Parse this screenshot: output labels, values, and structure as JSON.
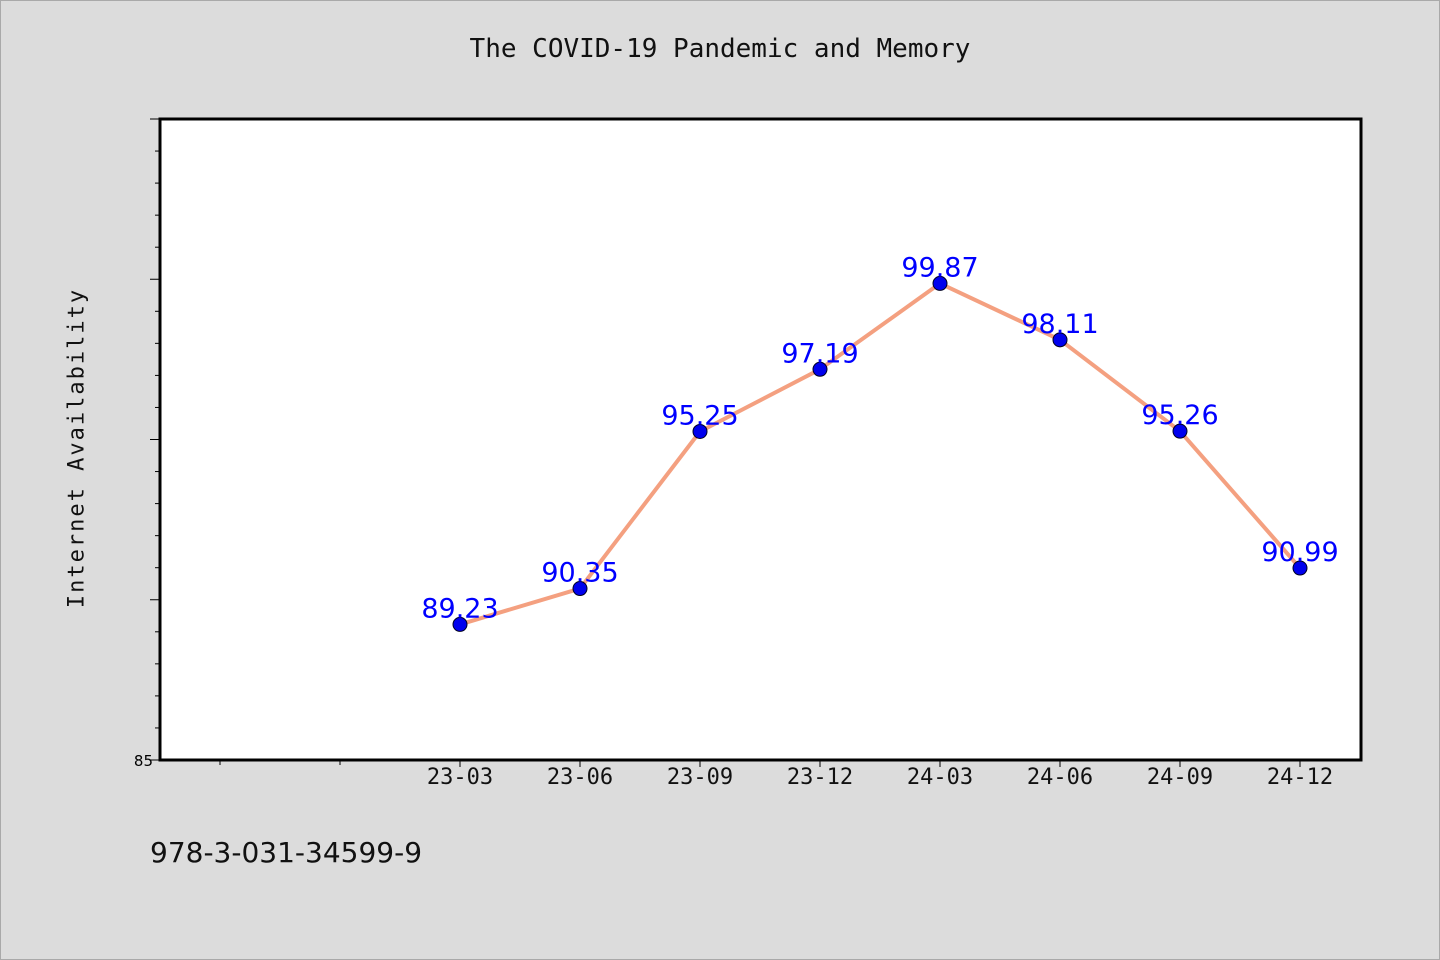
{
  "title": "The COVID-19 Pandemic and Memory",
  "footer_text": "978-3-031-34599-9",
  "colors": {
    "background": "#dcdcdc",
    "plot_background": "#ffffff",
    "line": "#f4a080",
    "marker": "#0000ee",
    "data_label": "#0000ff"
  },
  "chart_data": {
    "type": "line",
    "title": "The COVID-19 Pandemic and Memory",
    "xlabel": "",
    "ylabel": "Internet Availability",
    "categories": [
      "23-03",
      "23-06",
      "23-09",
      "23-12",
      "24-03",
      "24-06",
      "24-09",
      "24-12"
    ],
    "series": [
      {
        "values": [
          89.23,
          90.35,
          95.25,
          97.19,
          99.87,
          98.11,
          95.26,
          90.99
        ]
      }
    ],
    "ylim": [
      85,
      105
    ],
    "yticks_labeled": [
      "85"
    ],
    "grid": false,
    "legend": "none"
  }
}
